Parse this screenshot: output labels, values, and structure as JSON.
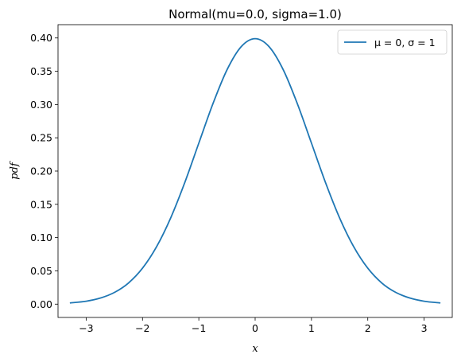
{
  "chart_data": {
    "type": "line",
    "title": "Normal(mu=0.0, sigma=1.0)",
    "xlabel": "x",
    "ylabel": "pdf",
    "xlim": [
      -3.5,
      3.5
    ],
    "ylim": [
      -0.02,
      0.42
    ],
    "x_ticks": [
      -3,
      -2,
      -1,
      0,
      1,
      2,
      3
    ],
    "x_tick_labels": [
      "−3",
      "−2",
      "−1",
      "0",
      "1",
      "2",
      "3"
    ],
    "y_ticks": [
      0.0,
      0.05,
      0.1,
      0.15,
      0.2,
      0.25,
      0.3,
      0.35,
      0.4
    ],
    "y_tick_labels": [
      "0.00",
      "0.05",
      "0.10",
      "0.15",
      "0.20",
      "0.25",
      "0.30",
      "0.35",
      "0.40"
    ],
    "grid": false,
    "legend_position": "top-right",
    "series": [
      {
        "name": "μ = 0, σ = 1",
        "color": "#1f77b4",
        "x": [
          -3.29,
          -3.0,
          -2.75,
          -2.5,
          -2.25,
          -2.0,
          -1.75,
          -1.5,
          -1.25,
          -1.0,
          -0.75,
          -0.5,
          -0.25,
          0.0,
          0.25,
          0.5,
          0.75,
          1.0,
          1.25,
          1.5,
          1.75,
          2.0,
          2.25,
          2.5,
          2.75,
          3.0,
          3.29
        ],
        "y": [
          0.0018,
          0.0044,
          0.0091,
          0.0175,
          0.0317,
          0.054,
          0.0863,
          0.1295,
          0.1826,
          0.242,
          0.3011,
          0.3521,
          0.3867,
          0.3989,
          0.3867,
          0.3521,
          0.3011,
          0.242,
          0.1826,
          0.1295,
          0.0863,
          0.054,
          0.0317,
          0.0175,
          0.0091,
          0.0044,
          0.0018
        ]
      }
    ]
  }
}
